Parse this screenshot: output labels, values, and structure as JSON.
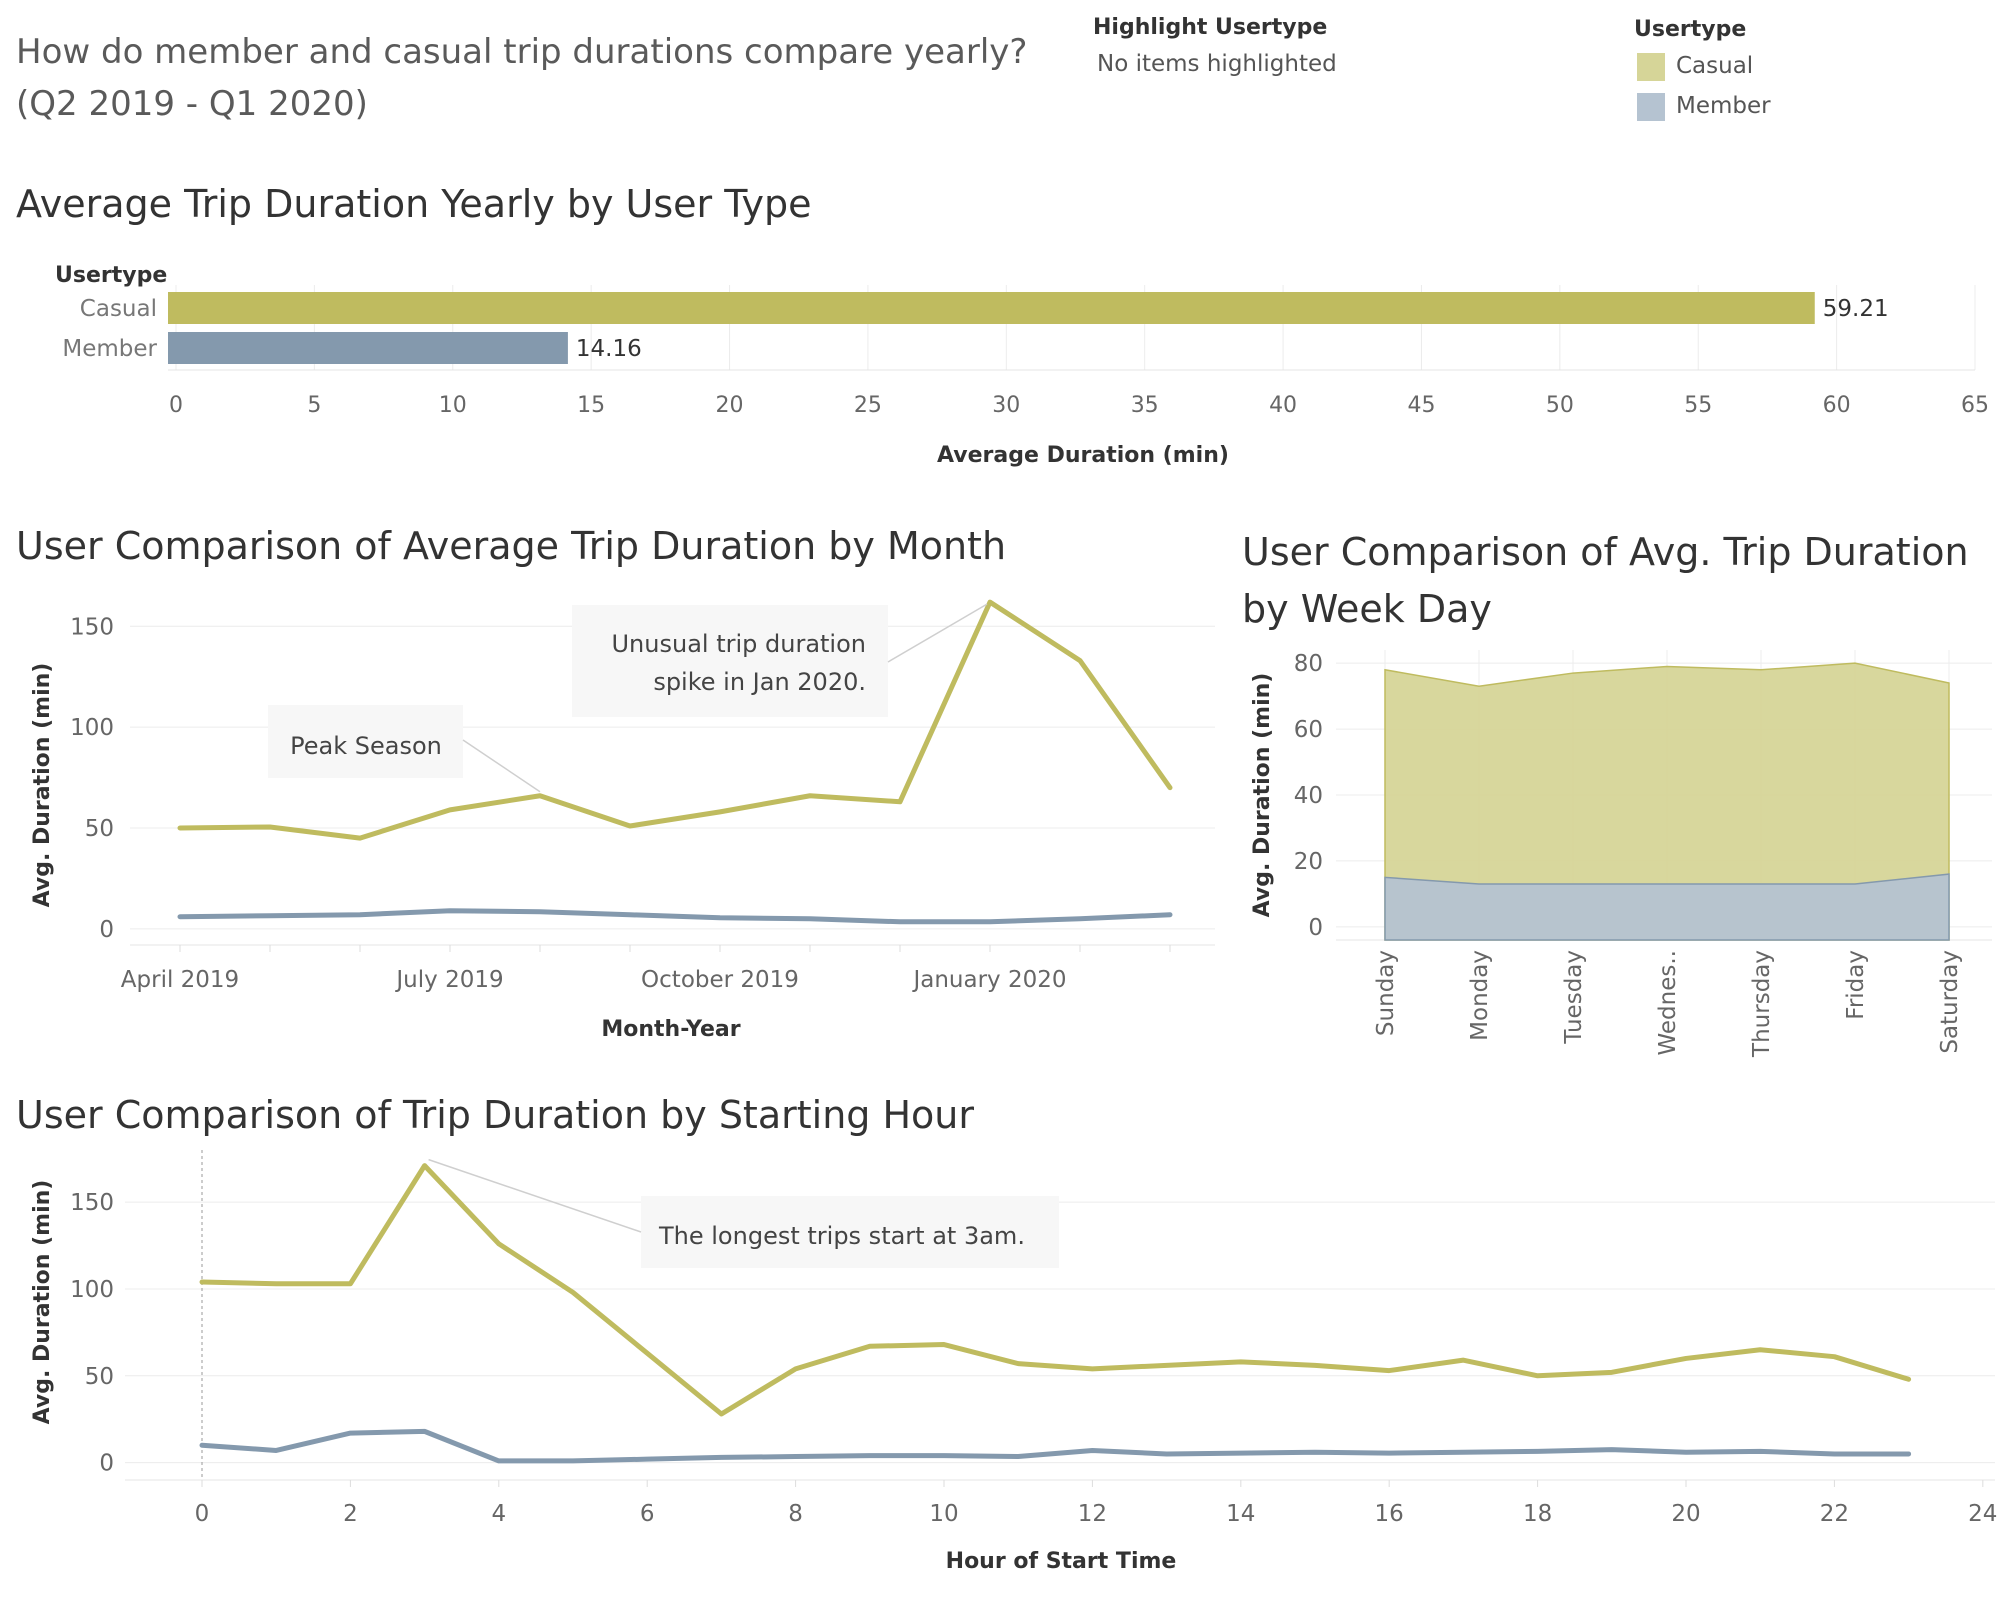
{
  "header": {
    "title_line1": "How do member and casual trip durations compare yearly?",
    "title_line2": "(Q2 2019 - Q1 2020)",
    "highlight_label": "Highlight Usertype",
    "highlight_value": "No items highlighted",
    "legend_title": "Usertype",
    "legend_items": [
      {
        "label": "Casual",
        "color": "#d6d598"
      },
      {
        "label": "Member",
        "color": "#b5c3d1"
      }
    ]
  },
  "colors": {
    "casual": "#bfbb5f",
    "member": "#8499ad",
    "casual_area": "#d6d598",
    "member_area": "#b5c3d1"
  },
  "chart_data": [
    {
      "type": "bar",
      "title": "Average Trip Duration Yearly by User Type",
      "category_header": "Usertype",
      "categories": [
        "Casual",
        "Member"
      ],
      "values": [
        59.21,
        14.16
      ],
      "value_labels": [
        "59.21",
        "14.16"
      ],
      "xlabel": "Average Duration (min)",
      "xlim": [
        0,
        65
      ],
      "xticks": [
        0,
        5,
        10,
        15,
        20,
        25,
        30,
        35,
        40,
        45,
        50,
        55,
        60,
        65
      ],
      "grid": true
    },
    {
      "type": "line",
      "title": "User Comparison of Average Trip Duration by Month",
      "xlabel": "Month-Year",
      "ylabel": "Avg. Duration (min)",
      "x": [
        "2019-04",
        "2019-05",
        "2019-06",
        "2019-07",
        "2019-08",
        "2019-09",
        "2019-10",
        "2019-11",
        "2019-12",
        "2020-01",
        "2020-02",
        "2020-03"
      ],
      "xtick_labels": [
        {
          "index": 0,
          "label": "April 2019"
        },
        {
          "index": 3,
          "label": "July 2019"
        },
        {
          "index": 6,
          "label": "October 2019"
        },
        {
          "index": 9,
          "label": "January 2020"
        }
      ],
      "yticks": [
        0,
        50,
        100,
        150
      ],
      "ylim": [
        -8,
        168
      ],
      "series": [
        {
          "name": "Casual",
          "values": [
            50,
            50.5,
            45,
            59,
            66,
            51,
            58,
            66,
            63,
            162,
            133,
            70
          ]
        },
        {
          "name": "Member",
          "values": [
            6,
            6.5,
            7,
            9,
            8.5,
            7,
            5.5,
            5,
            3.5,
            3.5,
            5,
            7
          ]
        }
      ],
      "annotations": [
        {
          "text": "Peak Season",
          "point_index": 4
        },
        {
          "text_lines": [
            "Unusual trip duration",
            "spike in Jan 2020."
          ],
          "point_index": 9
        }
      ],
      "grid": true
    },
    {
      "type": "area",
      "title_lines": [
        "User Comparison of Avg. Trip Duration",
        "by Week Day"
      ],
      "ylabel": "Avg. Duration (min)",
      "categories": [
        "Sunday",
        "Monday",
        "Tuesday",
        "Wednes..",
        "Thursday",
        "Friday",
        "Saturday"
      ],
      "yticks": [
        0,
        20,
        40,
        60,
        80
      ],
      "ylim": [
        -4,
        84
      ],
      "stacked": false,
      "series": [
        {
          "name": "Casual",
          "values": [
            78,
            73,
            77,
            79,
            78,
            80,
            74
          ]
        },
        {
          "name": "Member",
          "values": [
            15,
            13,
            13,
            13,
            13,
            13,
            16
          ]
        }
      ],
      "grid": true
    },
    {
      "type": "line",
      "title": "User Comparison of Trip Duration by Starting Hour",
      "xlabel": "Hour of Start Time",
      "ylabel": "Avg. Duration (min)",
      "xlim": [
        -1,
        24
      ],
      "xticks": [
        0,
        2,
        4,
        6,
        8,
        10,
        12,
        14,
        16,
        18,
        20,
        22,
        24
      ],
      "yticks": [
        0,
        50,
        100,
        150
      ],
      "ylim": [
        -10,
        180
      ],
      "x": [
        0,
        1,
        2,
        3,
        4,
        5,
        6,
        7,
        8,
        9,
        10,
        11,
        12,
        13,
        14,
        15,
        16,
        17,
        18,
        19,
        20,
        21,
        22,
        23
      ],
      "series": [
        {
          "name": "Casual",
          "values": [
            104,
            103,
            103,
            171,
            126,
            98,
            63,
            28,
            54,
            67,
            68,
            57,
            54,
            56,
            58,
            56,
            53,
            59,
            50,
            52,
            60,
            65,
            61,
            48
          ]
        },
        {
          "name": "Member",
          "values": [
            10,
            7,
            17,
            18,
            1,
            1,
            2,
            3,
            3.5,
            4,
            4,
            3.5,
            7,
            5,
            5.5,
            6,
            5.5,
            6,
            6.5,
            7.5,
            6,
            6.5,
            5,
            5
          ]
        }
      ],
      "annotations": [
        {
          "text": "The longest trips start at 3am.",
          "point_index": 3
        }
      ],
      "grid": true
    }
  ]
}
